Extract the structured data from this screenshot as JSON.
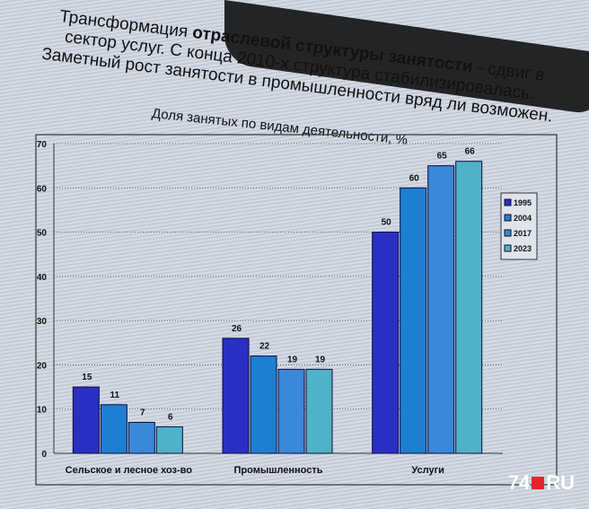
{
  "slide": {
    "title_line1_a": "Трансформация ",
    "title_line1_b": "отраслевой структуры занятости",
    "title_line1_c": " - сдвиг в",
    "title_line2": "сектор услуг. С конца 2010-х структура стабилизировалась.",
    "title_line3": "Заметный рост занятости в промышленности вряд ли возможен."
  },
  "chart_data": {
    "type": "bar",
    "title": "Доля занятых по видам деятельности, %",
    "categories": [
      "Сельское и лесное хоз-во",
      "Промышленность",
      "Услуги"
    ],
    "series": [
      {
        "name": "1995",
        "values": [
          15,
          26,
          50
        ],
        "color": "#2a2fc4"
      },
      {
        "name": "2004",
        "values": [
          11,
          22,
          60
        ],
        "color": "#1e7fd0"
      },
      {
        "name": "2017",
        "values": [
          7,
          19,
          65
        ],
        "color": "#3a88d8"
      },
      {
        "name": "2023",
        "values": [
          6,
          19,
          66
        ],
        "color": "#4fb2c8"
      }
    ],
    "yticks": [
      "0",
      "10",
      "20",
      "30",
      "40",
      "50",
      "60",
      "70"
    ],
    "ylim": [
      0,
      70
    ],
    "grid": true,
    "legend": "top-right"
  },
  "watermark": {
    "text": "74.RU"
  }
}
